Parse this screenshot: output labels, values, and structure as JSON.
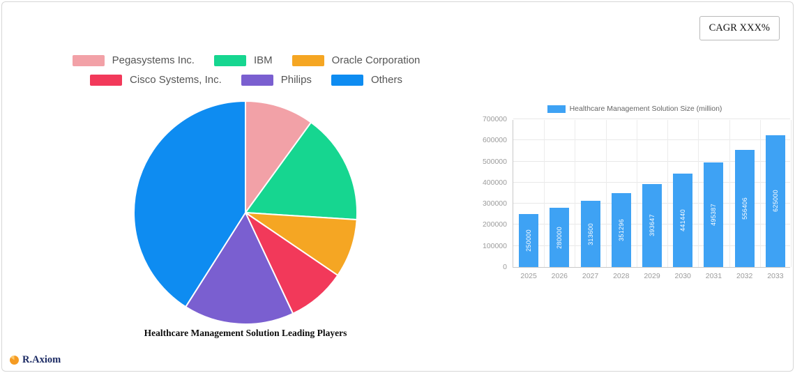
{
  "cagr": {
    "label": "CAGR XXX%"
  },
  "footer": {
    "brand": "R.Axiom"
  },
  "chart_data": [
    {
      "type": "pie",
      "title": "Healthcare Management Solution Leading Players",
      "labels": [
        "Pegasystems Inc.",
        "IBM",
        "Oracle Corporation",
        "Cisco Systems, Inc.",
        "Philips",
        "Others"
      ],
      "values": [
        10,
        16,
        8.5,
        8.5,
        16,
        41
      ],
      "value_note": "approximate share percent read from pie angles",
      "colors": [
        "#f2a1a7",
        "#16d690",
        "#f5a623",
        "#f2395a",
        "#7a5fd0",
        "#0e8cf1"
      ],
      "legend_position": "top",
      "start_angle_deg": -90,
      "direction": "clockwise"
    },
    {
      "type": "bar",
      "legend": "Healthcare Management Solution Size (million)",
      "categories": [
        "2025",
        "2026",
        "2027",
        "2028",
        "2029",
        "2030",
        "2031",
        "2032",
        "2033"
      ],
      "values": [
        250000,
        280000,
        313600,
        351296,
        393647,
        441440,
        495387,
        556406,
        625000
      ],
      "bar_color": "#3ea2f4",
      "label_color": "#ffffff",
      "ylim": [
        0,
        700000
      ],
      "yticks": [
        0,
        100000,
        200000,
        300000,
        400000,
        500000,
        600000,
        700000
      ],
      "grid": true,
      "legend_position": "top"
    }
  ]
}
